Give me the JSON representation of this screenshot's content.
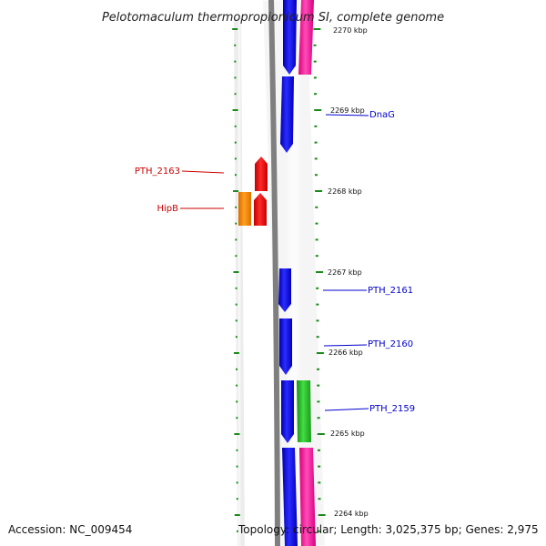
{
  "title": "Pelotomaculum thermopropionicum SI, complete genome",
  "accession": "Accession: NC_009454",
  "topology": "Topology: circular; Length: 3,025,375 bp; Genes: 2,975",
  "colors": {
    "backbone": "#7f7f7f",
    "ticks": "#1a8a1a",
    "forward_cds": "#0000ee",
    "forward_other": "#ff1fa0",
    "reverse_cds": "#ee0000",
    "reverse_other": "#ff8800",
    "green_feature": "#22bb22",
    "label_forward": "#0000cc",
    "label_reverse": "#cc0000"
  },
  "scale_labels": [
    "2270 kbp",
    "2269 kbp",
    "2268 kbp",
    "2267 kbp",
    "2266 kbp",
    "2265 kbp",
    "2264 kbp"
  ],
  "gene_labels": {
    "dnag": "DnaG",
    "pth2163": "PTH_2163",
    "hipb": "HipB",
    "pth2161": "PTH_2161",
    "pth2160": "PTH_2160",
    "pth2159": "PTH_2159"
  }
}
